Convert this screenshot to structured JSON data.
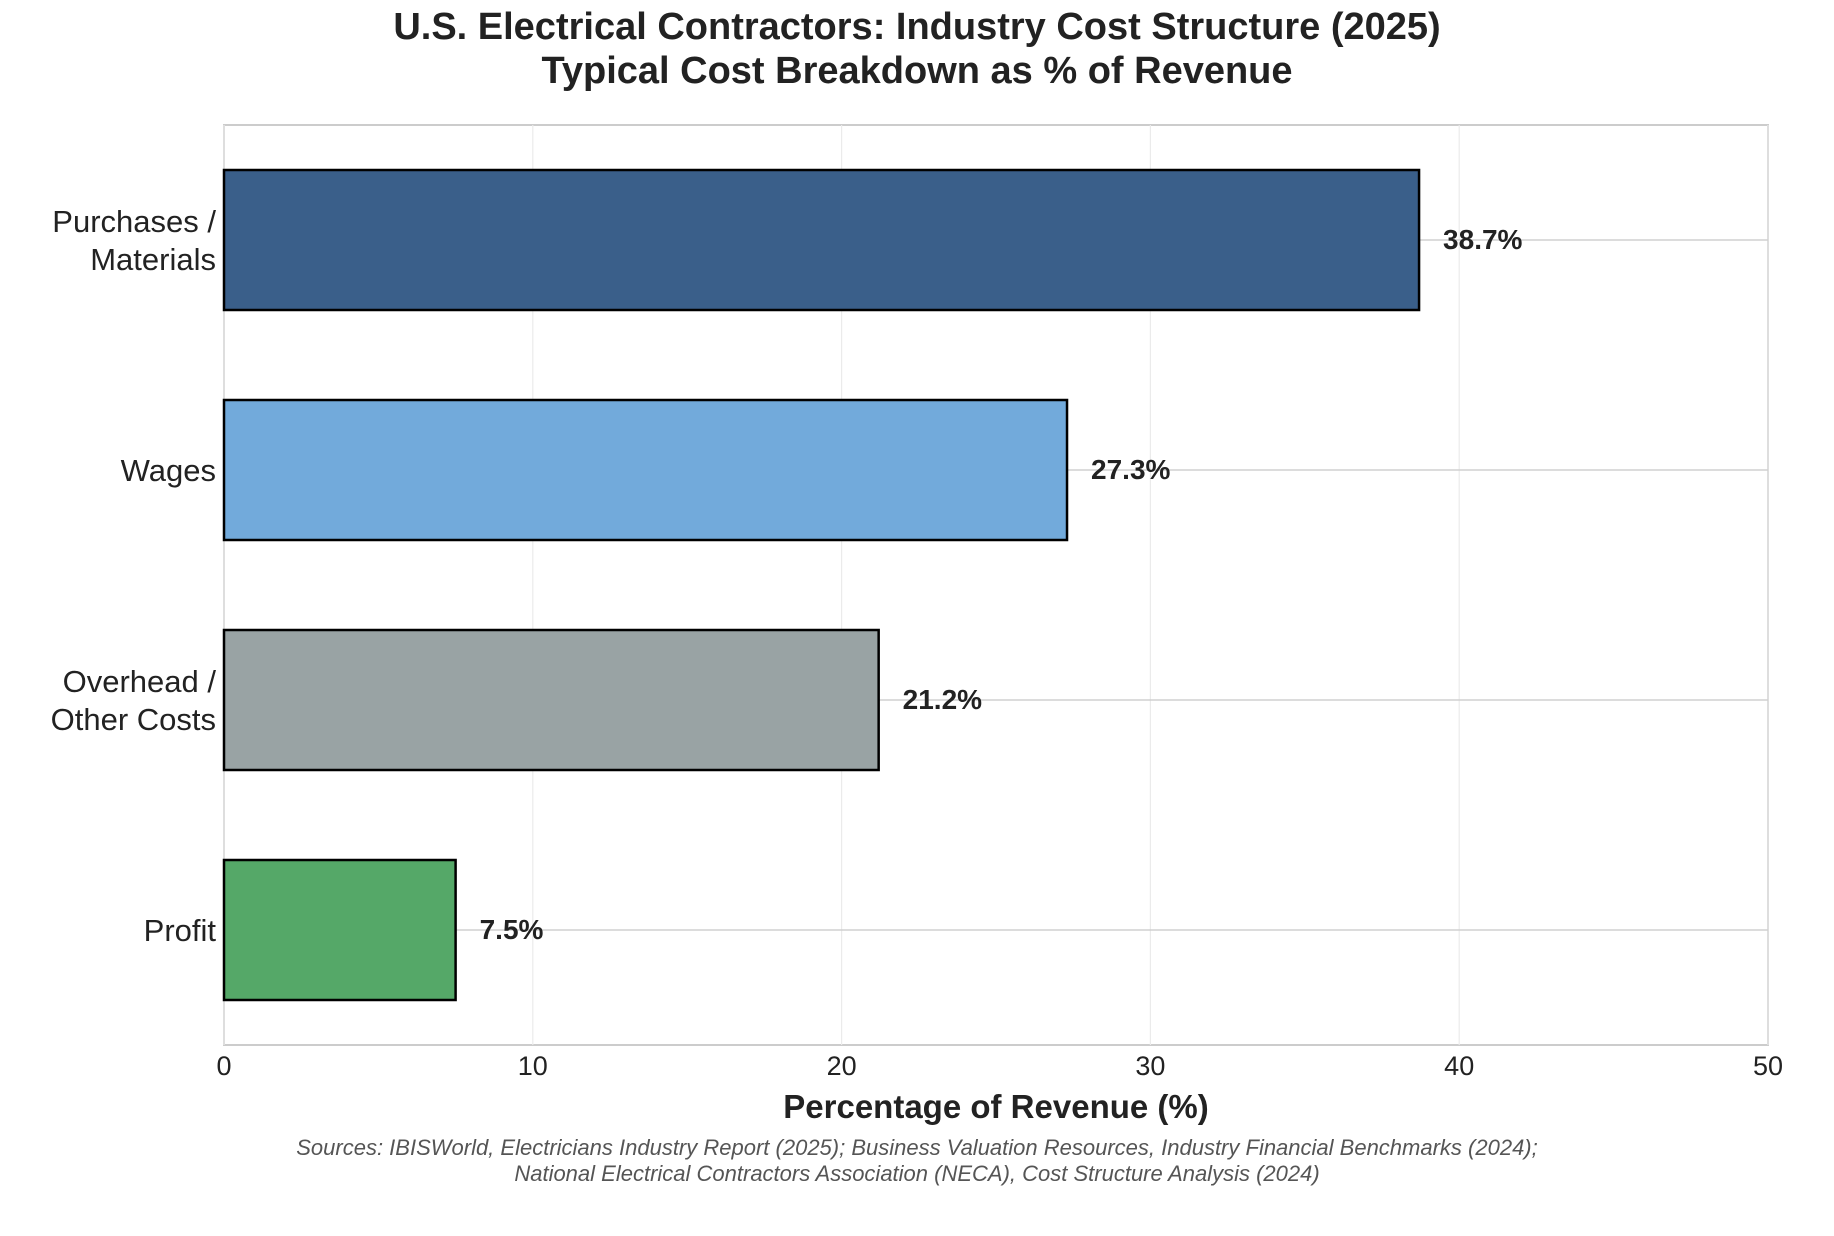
{
  "chart_data": {
    "type": "bar",
    "orientation": "horizontal",
    "title": "U.S. Electrical Contractors: Industry Cost Structure (2025)",
    "subtitle": "Typical Cost Breakdown as % of Revenue",
    "xlabel": "Percentage of Revenue (%)",
    "ylabel": "",
    "xlim": [
      0,
      50
    ],
    "xticks": [
      "0",
      "10",
      "20",
      "30",
      "40",
      "50"
    ],
    "grid": true,
    "categories": [
      [
        "Profit"
      ],
      [
        "Overhead /",
        "Other Costs"
      ],
      [
        "Wages"
      ],
      [
        "Purchases /",
        "Materials"
      ]
    ],
    "values": [
      7.5,
      21.2,
      27.3,
      38.7
    ],
    "data_labels": [
      "7.5%",
      "21.2%",
      "27.3%",
      "38.7%"
    ],
    "colors": [
      "#55a868",
      "#99a3a4",
      "#72aadb",
      "#3a5f8a"
    ],
    "sources": [
      "Sources: IBISWorld, Electricians Industry Report (2025); Business Valuation Resources, Industry Financial Benchmarks (2024);",
      "National Electrical Contractors Association (NECA), Cost Structure Analysis (2024)"
    ]
  }
}
